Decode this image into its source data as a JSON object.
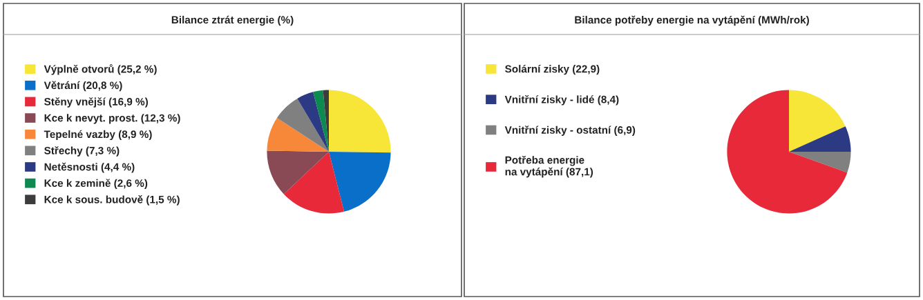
{
  "chart_data": [
    {
      "type": "pie",
      "title": "Bilance ztrát energie (%)",
      "legend": "left",
      "categories": [
        "Výplně otvorů (25,2 %)",
        "Větrání (20,8 %)",
        "Stěny vnější (16,9 %)",
        "Kce k nevyt. prost. (12,3 %)",
        "Tepelné vazby (8,9 %)",
        "Střechy (7,3 %)",
        "Netěsnosti (4,4 %)",
        "Kce k zemině (2,6 %)",
        "Kce k sous. budově (1,5 %)"
      ],
      "values": [
        25.2,
        20.8,
        16.9,
        12.3,
        8.9,
        7.3,
        4.4,
        2.6,
        1.5
      ],
      "colors": [
        "#f7e638",
        "#0a6fc8",
        "#e8293a",
        "#8a4a55",
        "#f7883a",
        "#808080",
        "#2b3a82",
        "#0d8a50",
        "#3c3c3c"
      ]
    },
    {
      "type": "pie",
      "title": "Bilance potřeby energie na vytápění (MWh/rok)",
      "legend": "left",
      "categories": [
        "Solární zisky (22,9)",
        "Vnitřní zisky - lidé (8,4)",
        "Vnitřní zisky - ostatní (6,9)",
        "Potřeba energie\nna vytápění (87,1)"
      ],
      "values": [
        22.9,
        8.4,
        6.9,
        87.1
      ],
      "colors": [
        "#f7e638",
        "#2b3a82",
        "#808080",
        "#e8293a"
      ]
    }
  ]
}
